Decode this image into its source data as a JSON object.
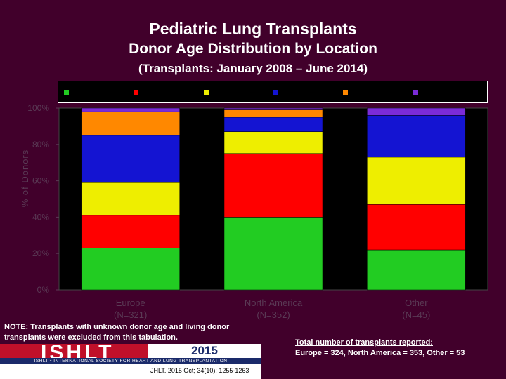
{
  "titles": {
    "main": "Pediatric Lung Transplants",
    "sub": "Donor Age Distribution by Location",
    "period": "(Transplants: January 2008 – June 2014)"
  },
  "note": "NOTE: Transplants with unknown donor age and living donor transplants were excluded from this tabulation.",
  "totals": {
    "heading": "Total number of transplants reported:",
    "text": "Europe = 324, North America = 353, Other = 53"
  },
  "footer": {
    "logo_text": "ISHLT",
    "year": "2015",
    "society": "ISHLT • INTERNATIONAL SOCIETY FOR HEART AND LUNG TRANSPLANTATION",
    "citation": "JHLT. 2015 Oct; 34(10): 1255-1263"
  },
  "colors": {
    "background": "#41002b",
    "plot_background": "#000000",
    "axis_text": "#5a3a55"
  },
  "chart_data": {
    "type": "bar",
    "stacked": true,
    "ylabel": "% of Donors",
    "ylim": [
      0,
      100
    ],
    "yticks": [
      "0%",
      "20%",
      "40%",
      "60%",
      "80%",
      "100%"
    ],
    "categories": [
      "Europe",
      "North America",
      "Other"
    ],
    "category_counts": [
      "(N=321)",
      "(N=352)",
      "(N=45)"
    ],
    "grid": false,
    "legend_position": "top",
    "series": [
      {
        "color": "#22cc22",
        "values": [
          23,
          40,
          22
        ]
      },
      {
        "color": "#ff0000",
        "values": [
          18,
          35,
          25
        ]
      },
      {
        "color": "#eeee00",
        "values": [
          18,
          12,
          26
        ]
      },
      {
        "color": "#1414d2",
        "values": [
          26,
          8,
          23
        ]
      },
      {
        "color": "#ff8800",
        "values": [
          13,
          4,
          0
        ]
      },
      {
        "color": "#7b2bd8",
        "values": [
          2,
          1,
          4
        ]
      }
    ]
  }
}
